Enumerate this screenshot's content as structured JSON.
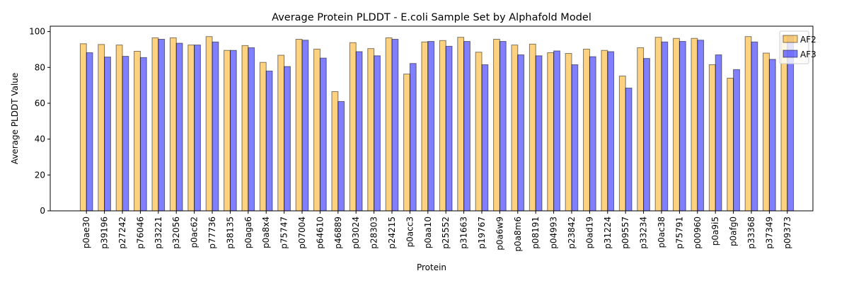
{
  "chart_data": {
    "type": "bar",
    "title": "Average Protein PLDDT - E.coli Sample Set by Alphafold Model",
    "xlabel": "Protein",
    "ylabel": "Average PLDDT Value",
    "ylim": [
      0,
      103
    ],
    "yticks": [
      0,
      20,
      40,
      60,
      80,
      100
    ],
    "grid": false,
    "legend_position": "top-right",
    "categories": [
      "p0ae30",
      "p39196",
      "p27242",
      "p76046",
      "p33221",
      "p32056",
      "p0ac62",
      "p77736",
      "p38135",
      "p0aga6",
      "p0a8x4",
      "p75747",
      "p07004",
      "p64610",
      "p46889",
      "p03024",
      "p28303",
      "p24215",
      "p0acc3",
      "p0aa10",
      "p25552",
      "p31663",
      "p19767",
      "p0a6w9",
      "p0a8m6",
      "p08191",
      "p04993",
      "p23842",
      "p0ad19",
      "p31224",
      "p09557",
      "p33234",
      "p0ac38",
      "p75791",
      "p00960",
      "p0a9i5",
      "p0afg0",
      "p33368",
      "p37349",
      "p09373"
    ],
    "series": [
      {
        "name": "AF2",
        "color": "#ffa500",
        "values": [
          93.2,
          92.8,
          92.5,
          89.0,
          96.5,
          96.5,
          92.5,
          97.2,
          89.5,
          92.2,
          82.8,
          86.8,
          95.7,
          90.2,
          66.5,
          93.8,
          90.5,
          96.5,
          76.3,
          94.2,
          95.0,
          96.8,
          88.5,
          95.7,
          92.5,
          93.0,
          88.2,
          87.8,
          90.2,
          89.5,
          75.2,
          91.0,
          96.8,
          96.2,
          96.2,
          81.5,
          74.0,
          97.2,
          88.0,
          97.5
        ]
      },
      {
        "name": "AF3",
        "color": "#0000ff",
        "values": [
          88.2,
          85.8,
          86.2,
          85.5,
          95.7,
          93.5,
          92.5,
          94.2,
          89.5,
          91.0,
          78.0,
          80.5,
          95.2,
          85.2,
          61.0,
          88.8,
          86.5,
          95.7,
          82.2,
          94.5,
          91.8,
          94.5,
          81.5,
          94.5,
          87.0,
          86.5,
          89.2,
          81.5,
          86.0,
          88.8,
          68.5,
          85.0,
          94.2,
          94.5,
          95.2,
          87.0,
          78.8,
          94.2,
          84.5,
          97.5
        ]
      }
    ]
  }
}
